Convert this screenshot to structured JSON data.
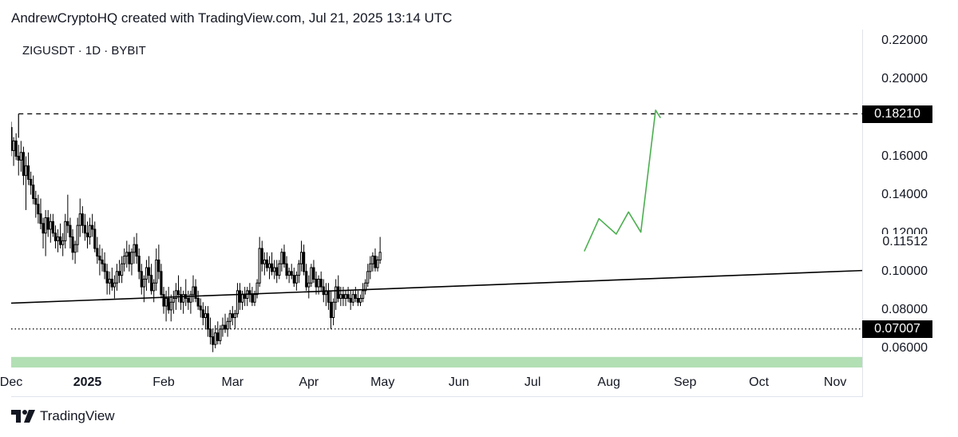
{
  "header": {
    "caption": "AndrewCryptoHQ created with TradingView.com, Jul 21, 2025 13:14 UTC"
  },
  "footer": {
    "brand": "TradingView",
    "logo_icon": "tradingview-logo-icon"
  },
  "chart_data": {
    "type": "candlestick",
    "symbol_label": "ZIGUSDT · 1D · BYBIT",
    "ylim": [
      0.05,
      0.226
    ],
    "y_ticks": [
      "0.22000",
      "0.20000",
      "0.16000",
      "0.14000",
      "0.12000",
      "0.10000",
      "0.08000",
      "0.06000"
    ],
    "y_tick_values": [
      0.22,
      0.2,
      0.16,
      0.14,
      0.12,
      0.1,
      0.08,
      0.06
    ],
    "x_ticks": [
      {
        "label": "Dec",
        "date": "2024-12-01",
        "bold": false
      },
      {
        "label": "2025",
        "date": "2025-01-01",
        "bold": true
      },
      {
        "label": "Feb",
        "date": "2025-02-01",
        "bold": false
      },
      {
        "label": "Mar",
        "date": "2025-03-01",
        "bold": false
      },
      {
        "label": "Apr",
        "date": "2025-04-01",
        "bold": false
      },
      {
        "label": "May",
        "date": "2025-05-01",
        "bold": false
      },
      {
        "label": "Jun",
        "date": "2025-06-01",
        "bold": false
      },
      {
        "label": "Jul",
        "date": "2025-07-01",
        "bold": false
      },
      {
        "label": "Aug",
        "date": "2025-08-01",
        "bold": false
      },
      {
        "label": "Sep",
        "date": "2025-09-01",
        "bold": false
      },
      {
        "label": "Oct",
        "date": "2025-10-01",
        "bold": false
      },
      {
        "label": "Nov",
        "date": "2025-11-01",
        "bold": false
      }
    ],
    "xlim": [
      "2024-12-01",
      "2025-11-12"
    ],
    "price_tags": [
      {
        "label": "0.18210",
        "value": 0.1821,
        "style": "tag"
      },
      {
        "label": "0.11512",
        "value": 0.11512,
        "style": "plain"
      },
      {
        "label": "0.07007",
        "value": 0.07007,
        "style": "tag"
      }
    ],
    "resistance_line": {
      "value": 0.1821,
      "from": "2024-12-04",
      "style": "dashed"
    },
    "support_line": {
      "value": 0.07007,
      "from": "2024-12-01",
      "style": "dotted"
    },
    "trendline": {
      "start": {
        "date": "2024-12-01",
        "value": 0.0835
      },
      "end": {
        "date": "2025-11-12",
        "value": 0.1005
      }
    },
    "projection": {
      "color": "#4caf50",
      "points": [
        {
          "date": "2025-07-22",
          "value": 0.1105
        },
        {
          "date": "2025-07-28",
          "value": 0.1275
        },
        {
          "date": "2025-08-04",
          "value": 0.1195
        },
        {
          "date": "2025-08-09",
          "value": 0.131
        },
        {
          "date": "2025-08-14",
          "value": 0.1205
        },
        {
          "date": "2025-08-20",
          "value": 0.184
        },
        {
          "date": "2025-08-22",
          "value": 0.18
        }
      ]
    },
    "band": {
      "color": "#b2dfb4",
      "ymin": 0.0495,
      "ymax": 0.0555
    },
    "candles_start": "2024-11-28",
    "candles": [
      [
        0.158,
        0.165,
        0.148,
        0.152
      ],
      [
        0.152,
        0.17,
        0.145,
        0.16
      ],
      [
        0.16,
        0.182,
        0.158,
        0.175
      ],
      [
        0.175,
        0.178,
        0.16,
        0.163
      ],
      [
        0.163,
        0.17,
        0.155,
        0.168
      ],
      [
        0.168,
        0.172,
        0.158,
        0.16
      ],
      [
        0.16,
        0.166,
        0.15,
        0.158
      ],
      [
        0.158,
        0.168,
        0.152,
        0.162
      ],
      [
        0.162,
        0.165,
        0.145,
        0.15
      ],
      [
        0.15,
        0.16,
        0.132,
        0.155
      ],
      [
        0.155,
        0.162,
        0.145,
        0.148
      ],
      [
        0.148,
        0.152,
        0.14,
        0.145
      ],
      [
        0.145,
        0.15,
        0.135,
        0.138
      ],
      [
        0.138,
        0.142,
        0.128,
        0.135
      ],
      [
        0.135,
        0.14,
        0.125,
        0.13
      ],
      [
        0.13,
        0.138,
        0.122,
        0.125
      ],
      [
        0.125,
        0.128,
        0.112,
        0.12
      ],
      [
        0.12,
        0.132,
        0.108,
        0.128
      ],
      [
        0.128,
        0.132,
        0.118,
        0.122
      ],
      [
        0.122,
        0.13,
        0.115,
        0.126
      ],
      [
        0.126,
        0.13,
        0.118,
        0.12
      ],
      [
        0.12,
        0.124,
        0.112,
        0.116
      ],
      [
        0.116,
        0.122,
        0.11,
        0.118
      ],
      [
        0.118,
        0.125,
        0.112,
        0.114
      ],
      [
        0.114,
        0.12,
        0.108,
        0.116
      ],
      [
        0.116,
        0.13,
        0.112,
        0.126
      ],
      [
        0.126,
        0.14,
        0.12,
        0.124
      ],
      [
        0.124,
        0.128,
        0.112,
        0.118
      ],
      [
        0.118,
        0.122,
        0.106,
        0.11
      ],
      [
        0.11,
        0.116,
        0.104,
        0.114
      ],
      [
        0.114,
        0.128,
        0.11,
        0.124
      ],
      [
        0.124,
        0.138,
        0.118,
        0.13
      ],
      [
        0.13,
        0.134,
        0.12,
        0.124
      ],
      [
        0.124,
        0.13,
        0.116,
        0.12
      ],
      [
        0.12,
        0.126,
        0.112,
        0.118
      ],
      [
        0.118,
        0.128,
        0.114,
        0.124
      ],
      [
        0.124,
        0.13,
        0.118,
        0.122
      ],
      [
        0.122,
        0.126,
        0.11,
        0.112
      ],
      [
        0.112,
        0.118,
        0.104,
        0.108
      ],
      [
        0.108,
        0.114,
        0.098,
        0.106
      ],
      [
        0.106,
        0.112,
        0.1,
        0.104
      ],
      [
        0.104,
        0.11,
        0.096,
        0.1
      ],
      [
        0.1,
        0.104,
        0.088,
        0.094
      ],
      [
        0.094,
        0.1,
        0.088,
        0.096
      ],
      [
        0.096,
        0.102,
        0.09,
        0.092
      ],
      [
        0.092,
        0.098,
        0.086,
        0.094
      ],
      [
        0.094,
        0.104,
        0.09,
        0.1
      ],
      [
        0.1,
        0.106,
        0.094,
        0.098
      ],
      [
        0.098,
        0.108,
        0.094,
        0.104
      ],
      [
        0.104,
        0.112,
        0.1,
        0.108
      ],
      [
        0.108,
        0.116,
        0.102,
        0.11
      ],
      [
        0.11,
        0.114,
        0.1,
        0.104
      ],
      [
        0.104,
        0.112,
        0.098,
        0.11
      ],
      [
        0.11,
        0.118,
        0.104,
        0.114
      ],
      [
        0.114,
        0.12,
        0.104,
        0.108
      ],
      [
        0.108,
        0.112,
        0.096,
        0.1
      ],
      [
        0.1,
        0.104,
        0.088,
        0.092
      ],
      [
        0.092,
        0.098,
        0.084,
        0.096
      ],
      [
        0.096,
        0.106,
        0.09,
        0.102
      ],
      [
        0.102,
        0.108,
        0.094,
        0.098
      ],
      [
        0.098,
        0.104,
        0.088,
        0.09
      ],
      [
        0.09,
        0.096,
        0.084,
        0.094
      ],
      [
        0.094,
        0.112,
        0.09,
        0.106
      ],
      [
        0.106,
        0.114,
        0.096,
        0.1
      ],
      [
        0.1,
        0.104,
        0.086,
        0.088
      ],
      [
        0.088,
        0.092,
        0.078,
        0.082
      ],
      [
        0.082,
        0.09,
        0.074,
        0.086
      ],
      [
        0.086,
        0.092,
        0.078,
        0.08
      ],
      [
        0.08,
        0.088,
        0.074,
        0.084
      ],
      [
        0.084,
        0.09,
        0.078,
        0.086
      ],
      [
        0.086,
        0.094,
        0.08,
        0.09
      ],
      [
        0.09,
        0.098,
        0.084,
        0.088
      ],
      [
        0.088,
        0.092,
        0.08,
        0.084
      ],
      [
        0.084,
        0.09,
        0.078,
        0.088
      ],
      [
        0.088,
        0.096,
        0.082,
        0.086
      ],
      [
        0.086,
        0.09,
        0.08,
        0.084
      ],
      [
        0.084,
        0.09,
        0.078,
        0.088
      ],
      [
        0.088,
        0.098,
        0.084,
        0.092
      ],
      [
        0.092,
        0.096,
        0.084,
        0.086
      ],
      [
        0.086,
        0.09,
        0.08,
        0.082
      ],
      [
        0.082,
        0.086,
        0.076,
        0.08
      ],
      [
        0.08,
        0.084,
        0.072,
        0.076
      ],
      [
        0.076,
        0.082,
        0.07,
        0.078
      ],
      [
        0.078,
        0.082,
        0.066,
        0.07
      ],
      [
        0.07,
        0.076,
        0.062,
        0.066
      ],
      [
        0.066,
        0.07,
        0.058,
        0.062
      ],
      [
        0.062,
        0.072,
        0.06,
        0.068
      ],
      [
        0.068,
        0.074,
        0.062,
        0.064
      ],
      [
        0.064,
        0.072,
        0.062,
        0.07
      ],
      [
        0.07,
        0.076,
        0.066,
        0.072
      ],
      [
        0.072,
        0.078,
        0.068,
        0.07
      ],
      [
        0.07,
        0.076,
        0.066,
        0.074
      ],
      [
        0.074,
        0.08,
        0.07,
        0.078
      ],
      [
        0.078,
        0.082,
        0.072,
        0.076
      ],
      [
        0.076,
        0.08,
        0.07,
        0.078
      ],
      [
        0.078,
        0.094,
        0.076,
        0.09
      ],
      [
        0.09,
        0.094,
        0.08,
        0.084
      ],
      [
        0.084,
        0.09,
        0.08,
        0.088
      ],
      [
        0.088,
        0.092,
        0.082,
        0.086
      ],
      [
        0.086,
        0.092,
        0.082,
        0.09
      ],
      [
        0.09,
        0.094,
        0.084,
        0.088
      ],
      [
        0.088,
        0.092,
        0.082,
        0.084
      ],
      [
        0.084,
        0.09,
        0.082,
        0.088
      ],
      [
        0.088,
        0.096,
        0.086,
        0.094
      ],
      [
        0.094,
        0.118,
        0.092,
        0.112
      ],
      [
        0.112,
        0.116,
        0.1,
        0.104
      ],
      [
        0.104,
        0.11,
        0.098,
        0.106
      ],
      [
        0.106,
        0.11,
        0.1,
        0.102
      ],
      [
        0.102,
        0.108,
        0.096,
        0.104
      ],
      [
        0.104,
        0.11,
        0.098,
        0.1
      ],
      [
        0.1,
        0.106,
        0.096,
        0.102
      ],
      [
        0.102,
        0.106,
        0.094,
        0.098
      ],
      [
        0.098,
        0.106,
        0.096,
        0.104
      ],
      [
        0.104,
        0.112,
        0.1,
        0.11
      ],
      [
        0.11,
        0.114,
        0.102,
        0.104
      ],
      [
        0.104,
        0.108,
        0.096,
        0.098
      ],
      [
        0.098,
        0.102,
        0.094,
        0.1
      ],
      [
        0.1,
        0.104,
        0.096,
        0.098
      ],
      [
        0.098,
        0.102,
        0.092,
        0.094
      ],
      [
        0.094,
        0.1,
        0.09,
        0.098
      ],
      [
        0.098,
        0.106,
        0.094,
        0.104
      ],
      [
        0.104,
        0.116,
        0.1,
        0.11
      ],
      [
        0.11,
        0.114,
        0.098,
        0.1
      ],
      [
        0.1,
        0.104,
        0.09,
        0.092
      ],
      [
        0.092,
        0.098,
        0.086,
        0.094
      ],
      [
        0.094,
        0.104,
        0.092,
        0.102
      ],
      [
        0.102,
        0.106,
        0.094,
        0.096
      ],
      [
        0.096,
        0.1,
        0.088,
        0.092
      ],
      [
        0.092,
        0.098,
        0.088,
        0.096
      ],
      [
        0.096,
        0.1,
        0.09,
        0.092
      ],
      [
        0.092,
        0.096,
        0.084,
        0.088
      ],
      [
        0.088,
        0.094,
        0.082,
        0.09
      ],
      [
        0.09,
        0.094,
        0.08,
        0.084
      ],
      [
        0.084,
        0.09,
        0.07,
        0.076
      ],
      [
        0.076,
        0.086,
        0.072,
        0.084
      ],
      [
        0.084,
        0.096,
        0.08,
        0.092
      ],
      [
        0.092,
        0.098,
        0.084,
        0.086
      ],
      [
        0.086,
        0.092,
        0.082,
        0.088
      ],
      [
        0.088,
        0.092,
        0.082,
        0.086
      ],
      [
        0.086,
        0.09,
        0.082,
        0.088
      ],
      [
        0.088,
        0.092,
        0.084,
        0.086
      ],
      [
        0.086,
        0.09,
        0.08,
        0.084
      ],
      [
        0.084,
        0.09,
        0.082,
        0.088
      ],
      [
        0.088,
        0.092,
        0.084,
        0.086
      ],
      [
        0.086,
        0.09,
        0.082,
        0.084
      ],
      [
        0.084,
        0.088,
        0.082,
        0.086
      ],
      [
        0.086,
        0.094,
        0.084,
        0.09
      ],
      [
        0.09,
        0.096,
        0.088,
        0.094
      ],
      [
        0.094,
        0.104,
        0.092,
        0.1
      ],
      [
        0.1,
        0.108,
        0.096,
        0.104
      ],
      [
        0.104,
        0.11,
        0.1,
        0.108
      ],
      [
        0.108,
        0.112,
        0.1,
        0.102
      ],
      [
        0.102,
        0.108,
        0.1,
        0.106
      ],
      [
        0.106,
        0.118,
        0.104,
        0.11
      ]
    ]
  }
}
